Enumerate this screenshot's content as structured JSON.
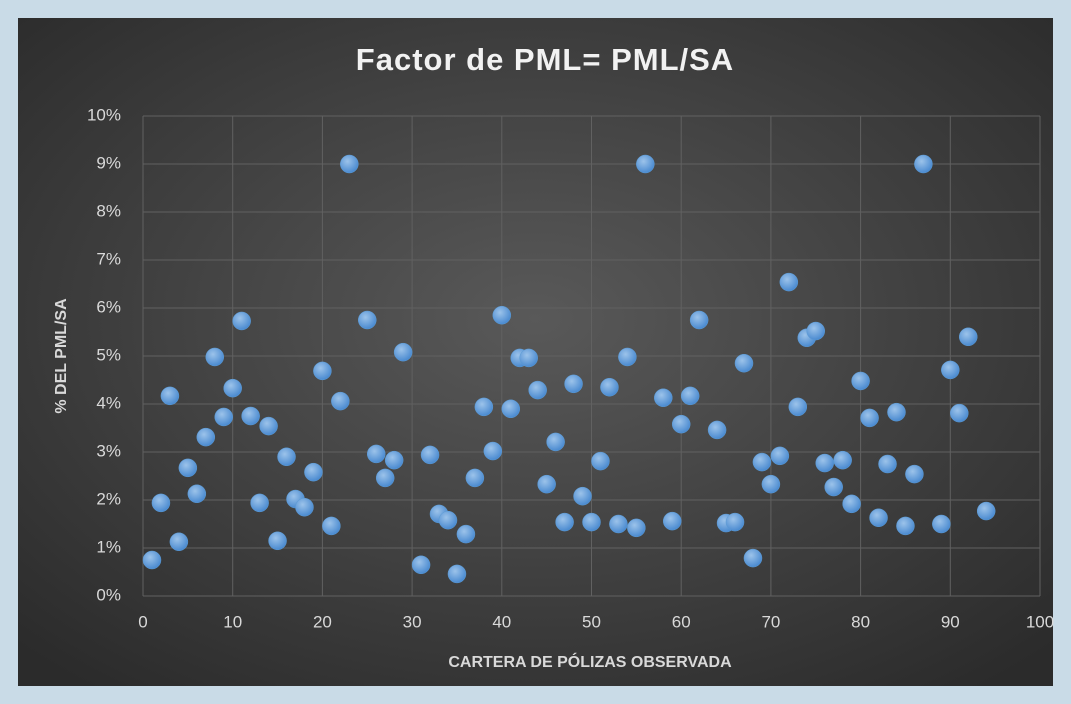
{
  "chart_data": {
    "type": "scatter",
    "title": "Factor de PML= PML/SA",
    "x_label": "CARTERA DE PÓLIZAS OBSERVADA",
    "y_label": "% DEL PML/SA",
    "series": [
      {
        "name": "PML/SA",
        "color": "#5b9bd5",
        "x": [
          1,
          2,
          3,
          4,
          5,
          6,
          7,
          8,
          9,
          10,
          11,
          12,
          13,
          14,
          15,
          16,
          17,
          18,
          19,
          20,
          21,
          22,
          23,
          25,
          26,
          27,
          28,
          29,
          31,
          32,
          33,
          34,
          35,
          36,
          37,
          38,
          39,
          40,
          41,
          42,
          43,
          44,
          45,
          46,
          47,
          48,
          49,
          50,
          51,
          52,
          53,
          54,
          55,
          56,
          58,
          59,
          60,
          61,
          62,
          64,
          65,
          66,
          67,
          68,
          69,
          70,
          71,
          72,
          73,
          74,
          75,
          76,
          77,
          78,
          79,
          80,
          81,
          82,
          83,
          84,
          85,
          86,
          87,
          89,
          90,
          91,
          92,
          94
        ],
        "values": [
          0.75,
          1.94,
          4.17,
          1.13,
          2.67,
          2.13,
          3.31,
          4.98,
          3.73,
          4.33,
          5.73,
          3.75,
          1.94,
          3.54,
          1.15,
          2.9,
          2.02,
          1.85,
          2.58,
          4.69,
          1.46,
          4.06,
          9.0,
          5.75,
          2.96,
          2.46,
          2.83,
          5.08,
          0.65,
          2.94,
          1.71,
          1.58,
          0.46,
          1.29,
          2.46,
          3.94,
          3.02,
          5.85,
          3.9,
          4.96,
          4.96,
          4.29,
          2.33,
          3.21,
          1.54,
          4.42,
          2.08,
          1.54,
          2.81,
          4.35,
          1.5,
          4.98,
          1.42,
          9.0,
          4.13,
          1.56,
          3.58,
          4.17,
          5.75,
          3.46,
          1.52,
          1.54,
          4.85,
          0.79,
          2.79,
          2.33,
          2.92,
          6.54,
          3.94,
          5.38,
          5.52,
          2.77,
          2.27,
          2.83,
          1.92,
          4.48,
          3.71,
          1.63,
          2.75,
          3.83,
          1.46,
          2.54,
          9.0,
          1.5,
          4.71,
          3.81,
          5.4,
          1.77
        ]
      }
    ],
    "xlim": [
      0,
      100
    ],
    "xticks": [
      0,
      10,
      20,
      30,
      40,
      50,
      60,
      70,
      80,
      90,
      100
    ],
    "ylim": [
      0,
      10
    ],
    "yticks": [
      {
        "value": 0,
        "label": "0%"
      },
      {
        "value": 1,
        "label": "1%"
      },
      {
        "value": 2,
        "label": "2%"
      },
      {
        "value": 3,
        "label": "3%"
      },
      {
        "value": 4,
        "label": "4%"
      },
      {
        "value": 5,
        "label": "5%"
      },
      {
        "value": 6,
        "label": "6%"
      },
      {
        "value": 7,
        "label": "7%"
      },
      {
        "value": 8,
        "label": "8%"
      },
      {
        "value": 9,
        "label": "9%"
      },
      {
        "value": 10,
        "label": "10%"
      }
    ],
    "grid": true
  }
}
